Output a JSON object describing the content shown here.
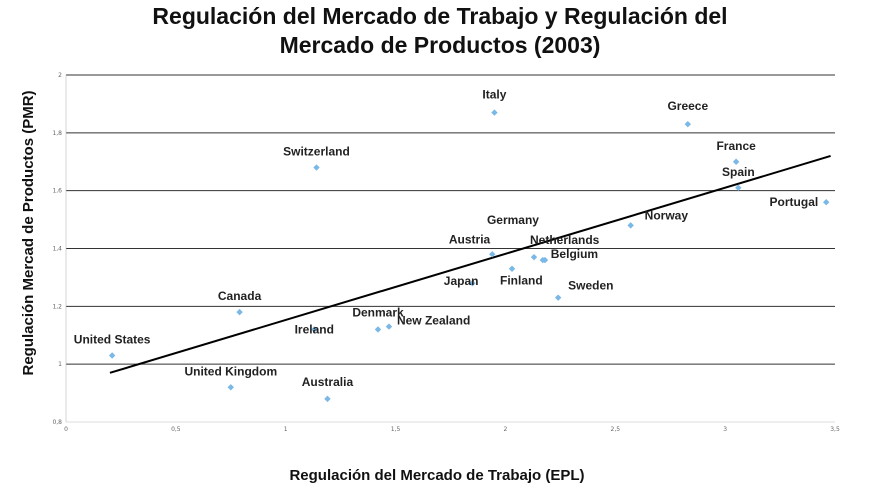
{
  "chart_data": {
    "type": "scatter",
    "title_lines": [
      "Regulación del Mercado de Trabajo y Regulación del",
      "Mercado de Productos (2003)"
    ],
    "xlabel": "Regulación del Mercado de Trabajo (EPL)",
    "ylabel": "Regulación Mercad de Productos (PMR)",
    "xlim": [
      0,
      3.5
    ],
    "ylim": [
      0.8,
      2.0
    ],
    "x_ticks": [
      "0",
      "0,5",
      "1",
      "1,5",
      "2",
      "2,5",
      "3",
      "3,5"
    ],
    "y_ticks": [
      "0,8",
      "1",
      "1,2",
      "1,4",
      "1,6",
      "1,8",
      "2"
    ],
    "grid": "horizontal",
    "point_color": "#7ab8e6",
    "line_color": "#000000",
    "trendline": {
      "x1": 0.2,
      "y1": 0.97,
      "x2": 3.48,
      "y2": 1.72
    },
    "points": [
      {
        "name": "Italy",
        "x": 1.95,
        "y": 1.87
      },
      {
        "name": "Greece",
        "x": 2.83,
        "y": 1.83
      },
      {
        "name": "France",
        "x": 3.05,
        "y": 1.7
      },
      {
        "name": "Spain",
        "x": 3.06,
        "y": 1.61
      },
      {
        "name": "Portugal",
        "x": 3.46,
        "y": 1.56
      },
      {
        "name": "Switzerland",
        "x": 1.14,
        "y": 1.68
      },
      {
        "name": "Norway",
        "x": 2.57,
        "y": 1.48
      },
      {
        "name": "Germany",
        "x": 2.18,
        "y": 1.36
      },
      {
        "name": "Netherlands",
        "x": 2.13,
        "y": 1.37
      },
      {
        "name": "Belgium",
        "x": 2.17,
        "y": 1.36
      },
      {
        "name": "Austria",
        "x": 1.94,
        "y": 1.38
      },
      {
        "name": "Finland",
        "x": 2.03,
        "y": 1.33
      },
      {
        "name": "Japan",
        "x": 1.85,
        "y": 1.28
      },
      {
        "name": "Sweden",
        "x": 2.24,
        "y": 1.23
      },
      {
        "name": "Canada",
        "x": 0.79,
        "y": 1.18
      },
      {
        "name": "Denmark",
        "x": 1.42,
        "y": 1.12
      },
      {
        "name": "New Zealand",
        "x": 1.47,
        "y": 1.13
      },
      {
        "name": "Ireland",
        "x": 1.13,
        "y": 1.12
      },
      {
        "name": "United States",
        "x": 0.21,
        "y": 1.03
      },
      {
        "name": "United Kingdom",
        "x": 0.75,
        "y": 0.92
      },
      {
        "name": "Australia",
        "x": 1.19,
        "y": 0.88
      }
    ]
  }
}
